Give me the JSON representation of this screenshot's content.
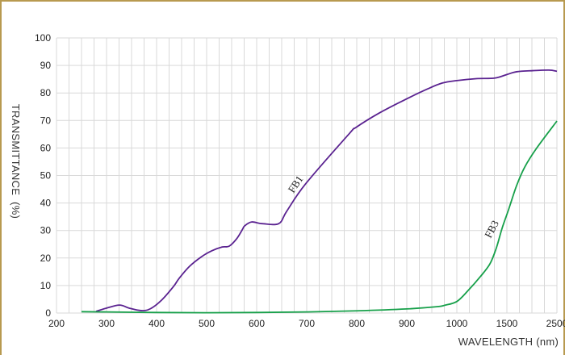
{
  "chart_data": {
    "type": "line",
    "title": "",
    "xlabel": "WAVELENGTH (nm)",
    "ylabel": "TRANSMITTANCE  (%)",
    "x_ticks": [
      200,
      300,
      400,
      500,
      600,
      700,
      800,
      900,
      1000,
      1500,
      2500
    ],
    "x_scale": "piecewise linear: 200-1000 at 100 nm per division, then 1000-1500 and 1500-2500 each one division",
    "xlim": [
      200,
      2500
    ],
    "y_ticks": [
      0,
      10,
      20,
      30,
      40,
      50,
      60,
      70,
      80,
      90,
      100
    ],
    "ylim": [
      0,
      100
    ],
    "grid": true,
    "colors": {
      "FB1": "#5a2290",
      "FB3": "#17a04a",
      "grid": "#d9d9d9",
      "border": "#b89a50"
    },
    "series": [
      {
        "name": "FB1",
        "label_at": 698,
        "points": [
          [
            279,
            0.6
          ],
          [
            300,
            1.8
          ],
          [
            326,
            2.9
          ],
          [
            345,
            1.8
          ],
          [
            369,
            0.9
          ],
          [
            387,
            1.5
          ],
          [
            410,
            4.7
          ],
          [
            434,
            9.7
          ],
          [
            445,
            12.6
          ],
          [
            466,
            17
          ],
          [
            490,
            20.5
          ],
          [
            510,
            22.6
          ],
          [
            531,
            24
          ],
          [
            545,
            24.3
          ],
          [
            560,
            27
          ],
          [
            571,
            30.2
          ],
          [
            576,
            31.7
          ],
          [
            590,
            33.1
          ],
          [
            611,
            32.5
          ],
          [
            644,
            32.5
          ],
          [
            660,
            37
          ],
          [
            698,
            47
          ],
          [
            785,
            65.2
          ],
          [
            798,
            67.4
          ],
          [
            845,
            72.7
          ],
          [
            898,
            77.7
          ],
          [
            942,
            81.5
          ],
          [
            971,
            83.6
          ],
          [
            1000,
            84.5
          ],
          [
            1194,
            85.2
          ],
          [
            1379,
            85.4
          ],
          [
            1500,
            86.7
          ],
          [
            1694,
            87.7
          ],
          [
            2016,
            88.1
          ],
          [
            2339,
            88.3
          ],
          [
            2500,
            87.9
          ]
        ]
      },
      {
        "name": "FB3",
        "label_at": 1452,
        "points": [
          [
            250,
            0.5
          ],
          [
            300,
            0.4
          ],
          [
            400,
            0.2
          ],
          [
            500,
            0.1
          ],
          [
            600,
            0.2
          ],
          [
            700,
            0.4
          ],
          [
            800,
            0.8
          ],
          [
            900,
            1.5
          ],
          [
            960,
            2.3
          ],
          [
            975,
            2.8
          ],
          [
            1000,
            4.2
          ],
          [
            1113,
            8.2
          ],
          [
            1234,
            13.2
          ],
          [
            1331,
            17.9
          ],
          [
            1395,
            23.7
          ],
          [
            1452,
            30.8
          ],
          [
            1532,
            37.5
          ],
          [
            1694,
            46.3
          ],
          [
            1855,
            53
          ],
          [
            2097,
            60
          ],
          [
            2500,
            69.8
          ]
        ]
      }
    ]
  }
}
